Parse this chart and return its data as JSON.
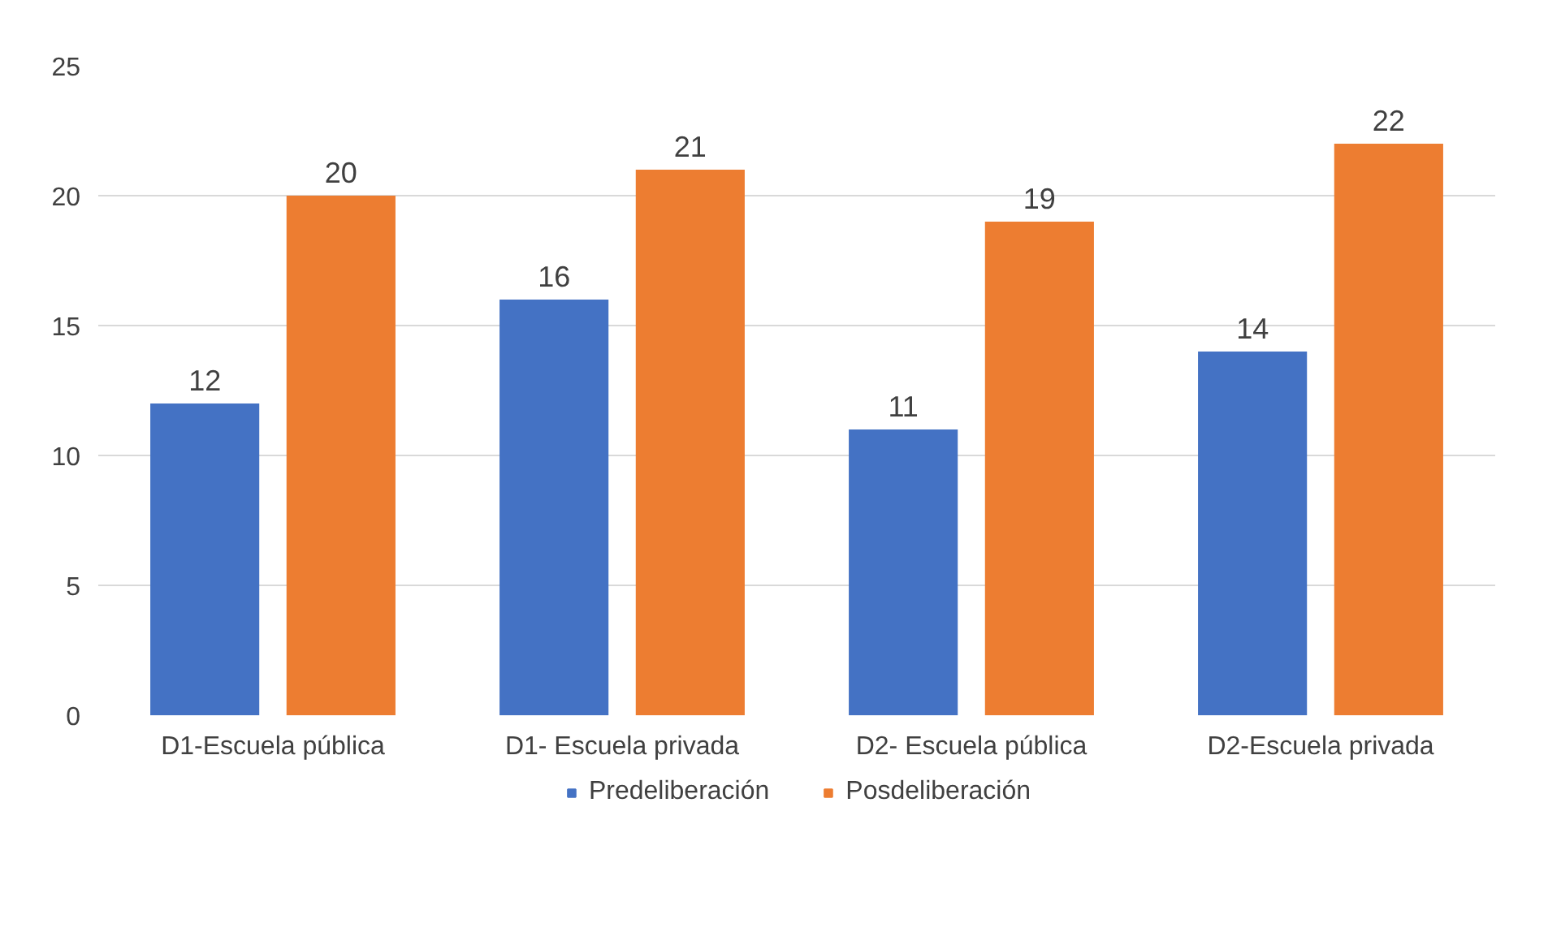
{
  "chart_data": {
    "type": "bar",
    "categories": [
      "D1-Escuela pública",
      "D1- Escuela privada",
      "D2- Escuela pública",
      "D2-Escuela privada"
    ],
    "series": [
      {
        "name": "Predeliberación",
        "color": "#4472c4",
        "values": [
          12,
          16,
          11,
          14
        ]
      },
      {
        "name": "Posdeliberación",
        "color": "#ed7d31",
        "values": [
          20,
          21,
          19,
          22
        ]
      }
    ],
    "ylim": [
      0,
      25
    ],
    "yticks": [
      0,
      5,
      10,
      15,
      20,
      25
    ],
    "grid": "y",
    "legend": "bottom",
    "data_labels": true
  }
}
